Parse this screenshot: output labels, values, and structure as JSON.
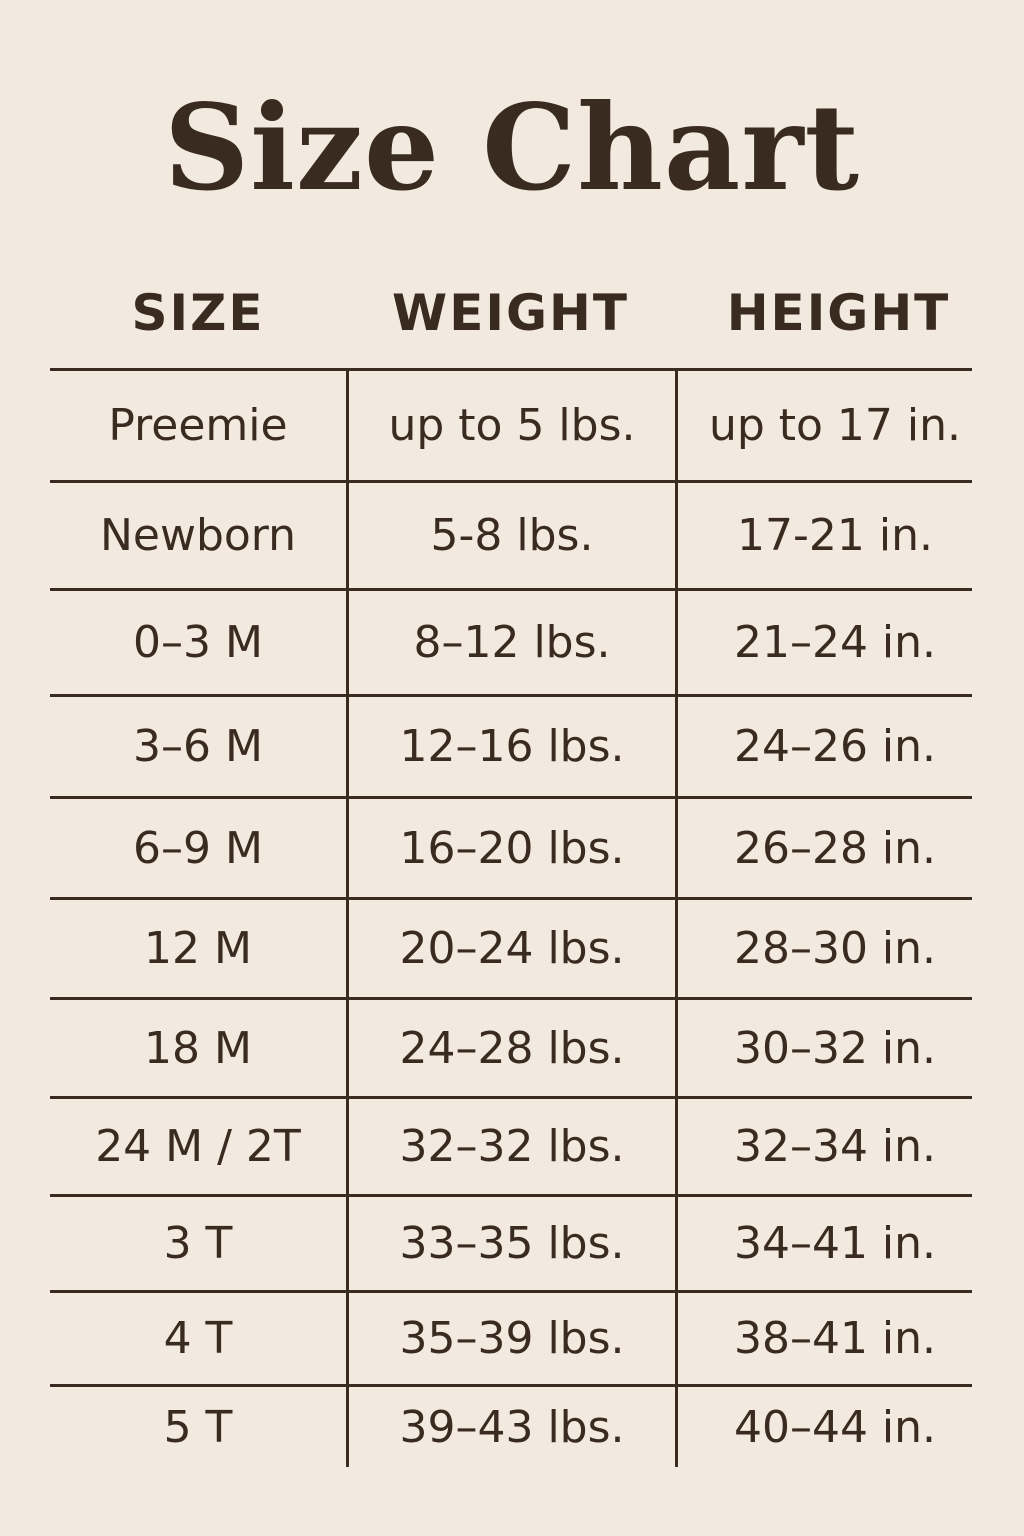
{
  "title": "Size Chart",
  "colors": {
    "background": "#f2eadf",
    "text": "#3a2b20"
  },
  "columns": [
    "SIZE",
    "WEIGHT",
    "HEIGHT"
  ],
  "rows": [
    [
      "Preemie",
      "up to 5 lbs.",
      "up to 17 in."
    ],
    [
      "Newborn",
      "5-8 lbs.",
      "17-21 in."
    ],
    [
      "0–3 M",
      "8–12 lbs.",
      "21–24 in."
    ],
    [
      "3–6 M",
      "12–16 lbs.",
      "24–26 in."
    ],
    [
      "6–9 M",
      "16–20 lbs.",
      "26–28 in."
    ],
    [
      "12 M",
      "20–24 lbs.",
      "28–30 in."
    ],
    [
      "18 M",
      "24–28 lbs.",
      "30–32 in."
    ],
    [
      "24 M / 2T",
      "32–32 lbs.",
      "32–34 in."
    ],
    [
      "3 T",
      "33–35 lbs.",
      "34–41 in."
    ],
    [
      "4 T",
      "35–39 lbs.",
      "38–41 in."
    ],
    [
      "5 T",
      "39–43 lbs.",
      "40–44 in."
    ]
  ]
}
